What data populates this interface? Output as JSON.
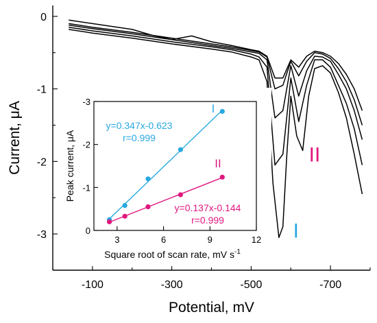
{
  "colors": {
    "line": "#000000",
    "series_I": "#29a8e0",
    "series_II": "#e0177f"
  },
  "chart_data": [
    {
      "type": "line",
      "xlabel": "Potential, mV",
      "ylabel": "Current, μA",
      "xlim": [
        0,
        -800
      ],
      "ylim": [
        -3.5,
        0.15
      ],
      "x_ticks": [
        -100,
        -300,
        -500,
        -700
      ],
      "x_tick_labels": [
        "-100",
        "-300",
        "-500",
        "-700"
      ],
      "y_ticks": [
        0,
        -1,
        -2,
        -3
      ],
      "y_tick_labels": [
        "0",
        "-1",
        "-2",
        "-3"
      ],
      "annotations": [
        {
          "text": "I",
          "color": "#29a8e0",
          "x": -613,
          "y": -3.05
        },
        {
          "text": "II",
          "color": "#e0177f",
          "x": -660,
          "y": -2.0
        }
      ],
      "series": [
        {
          "x": [
            -40,
            -100,
            -200,
            -250,
            -300,
            -350,
            -400,
            -450,
            -500,
            -520,
            -540,
            -560,
            -580,
            -600,
            -620,
            -640,
            -660,
            -680,
            -700,
            -720,
            -740,
            -760,
            -780
          ],
          "y": [
            -0.05,
            -0.1,
            -0.18,
            -0.26,
            -0.32,
            -0.27,
            -0.35,
            -0.4,
            -0.46,
            -0.48,
            -0.55,
            -0.85,
            -0.85,
            -0.6,
            -0.7,
            -0.55,
            -0.48,
            -0.5,
            -0.55,
            -0.65,
            -0.8,
            -1.0,
            -1.3
          ]
        },
        {
          "x": [
            -40,
            -100,
            -200,
            -300,
            -400,
            -450,
            -500,
            -520,
            -540,
            -560,
            -580,
            -600,
            -620,
            -640,
            -660,
            -680,
            -700,
            -720,
            -740,
            -760,
            -780
          ],
          "y": [
            -0.1,
            -0.15,
            -0.22,
            -0.3,
            -0.38,
            -0.42,
            -0.47,
            -0.49,
            -0.56,
            -1.0,
            -0.95,
            -0.62,
            -0.82,
            -0.62,
            -0.5,
            -0.52,
            -0.58,
            -0.72,
            -0.9,
            -1.15,
            -1.5
          ]
        },
        {
          "x": [
            -40,
            -100,
            -200,
            -300,
            -400,
            -450,
            -500,
            -520,
            -540,
            -560,
            -580,
            -600,
            -620,
            -640,
            -660,
            -680,
            -700,
            -720,
            -740,
            -760,
            -780
          ],
          "y": [
            -0.12,
            -0.17,
            -0.24,
            -0.32,
            -0.4,
            -0.44,
            -0.49,
            -0.51,
            -0.6,
            -1.4,
            -1.3,
            -0.68,
            -1.1,
            -0.75,
            -0.55,
            -0.56,
            -0.62,
            -0.8,
            -1.0,
            -1.3,
            -1.7
          ]
        },
        {
          "x": [
            -40,
            -100,
            -200,
            -300,
            -400,
            -450,
            -500,
            -520,
            -540,
            -560,
            -580,
            -600,
            -620,
            -640,
            -660,
            -680,
            -700,
            -720,
            -740,
            -760,
            -780
          ],
          "y": [
            -0.15,
            -0.2,
            -0.27,
            -0.35,
            -0.42,
            -0.46,
            -0.52,
            -0.56,
            -0.7,
            -2.05,
            -1.9,
            -0.85,
            -1.45,
            -0.95,
            -0.6,
            -0.6,
            -0.7,
            -0.95,
            -1.2,
            -1.55,
            -2.05
          ]
        },
        {
          "x": [
            -40,
            -100,
            -200,
            -300,
            -400,
            -450,
            -500,
            -520,
            -540,
            -555,
            -570,
            -580,
            -590,
            -600,
            -615,
            -630,
            -645,
            -660,
            -680,
            -700,
            -720,
            -740,
            -760,
            -780
          ],
          "y": [
            -0.18,
            -0.23,
            -0.3,
            -0.38,
            -0.45,
            -0.49,
            -0.56,
            -0.6,
            -0.9,
            -2.3,
            -3.05,
            -2.9,
            -1.9,
            -1.1,
            -1.65,
            -1.85,
            -1.1,
            -0.72,
            -0.68,
            -0.78,
            -1.05,
            -1.4,
            -1.9,
            -2.45
          ]
        }
      ]
    },
    {
      "type": "scatter",
      "xlabel": "Square root of scan rate, mV s",
      "xlabel_superscript": "-1",
      "ylabel": "Peak current, μA",
      "xlim": [
        1.5,
        12
      ],
      "ylim": [
        0,
        -3
      ],
      "x_ticks": [
        3,
        6,
        9,
        12
      ],
      "x_tick_labels": [
        "3",
        "6",
        "9",
        "12"
      ],
      "y_ticks": [
        0,
        -1,
        -2,
        -3
      ],
      "y_tick_labels": [
        "0",
        "-1",
        "-2",
        "-3"
      ],
      "series": [
        {
          "name": "I",
          "color": "#29a8e0",
          "equation": "y=0.347x-0.623",
          "r": "r=0.999",
          "x": [
            2.5,
            3.5,
            5.0,
            7.1,
            9.8
          ],
          "y": [
            -0.25,
            -0.58,
            -1.2,
            -1.88,
            -2.77
          ]
        },
        {
          "name": "II",
          "color": "#e0177f",
          "equation": "y=0.137x-0.144",
          "r": "r=0.999",
          "x": [
            2.5,
            3.5,
            5.0,
            7.1,
            9.8
          ],
          "y": [
            -0.2,
            -0.33,
            -0.55,
            -0.83,
            -1.24
          ]
        }
      ]
    }
  ]
}
